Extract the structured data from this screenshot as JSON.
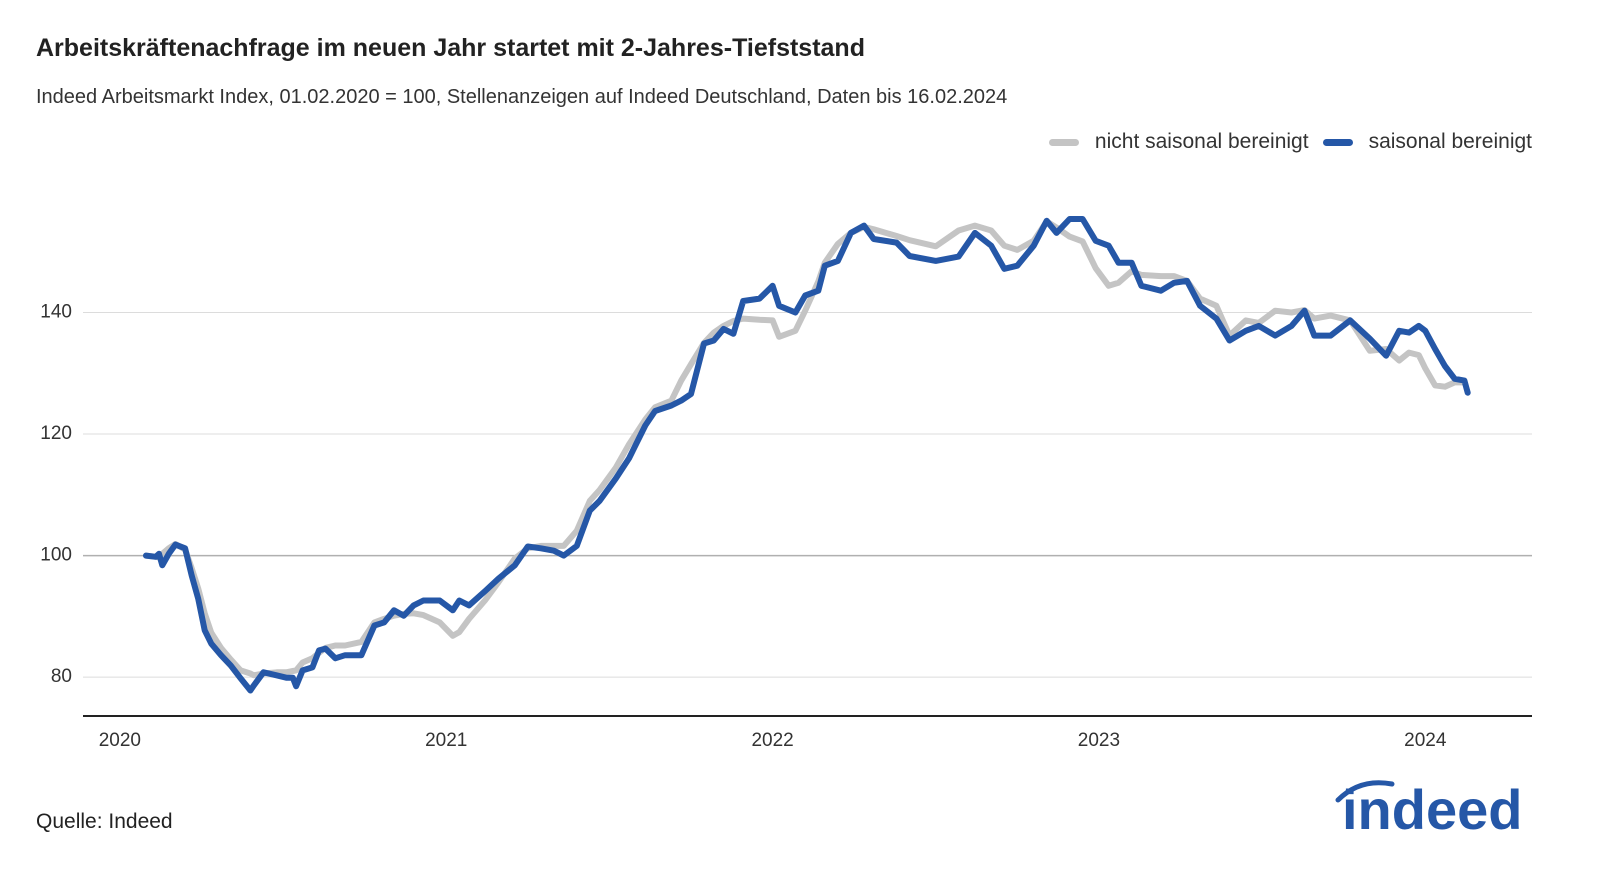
{
  "chart_data": {
    "type": "line",
    "title": "Arbeitskräftenachfrage im neuen Jahr startet mit 2-Jahres-Tiefststand",
    "subtitle": "Indeed Arbeitsmarkt Index, 01.02.2020 = 100, Stellenanzeigen auf Indeed Deutschland, Daten bis 16.02.2024",
    "source": "Quelle: Indeed",
    "x": [
      2020.08,
      2020.11,
      2020.12,
      2020.13,
      2020.15,
      2020.17,
      2020.2,
      2020.22,
      2020.24,
      2020.26,
      2020.28,
      2020.31,
      2020.34,
      2020.37,
      2020.4,
      2020.41,
      2020.44,
      2020.48,
      2020.51,
      2020.53,
      2020.54,
      2020.56,
      2020.59,
      2020.61,
      2020.63,
      2020.66,
      2020.69,
      2020.74,
      2020.78,
      2020.81,
      2020.84,
      2020.87,
      2020.9,
      2020.93,
      2020.98,
      2021.02,
      2021.04,
      2021.07,
      2021.12,
      2021.16,
      2021.21,
      2021.25,
      2021.29,
      2021.33,
      2021.36,
      2021.4,
      2021.44,
      2021.47,
      2021.52,
      2021.56,
      2021.61,
      2021.64,
      2021.69,
      2021.72,
      2021.75,
      2021.79,
      2021.82,
      2021.85,
      2021.88,
      2021.91,
      2021.96,
      2022,
      2022.02,
      2022.07,
      2022.1,
      2022.14,
      2022.16,
      2022.2,
      2022.24,
      2022.28,
      2022.31,
      2022.38,
      2022.42,
      2022.5,
      2022.57,
      2022.62,
      2022.67,
      2022.71,
      2022.75,
      2022.8,
      2022.84,
      2022.87,
      2022.91,
      2022.95,
      2022.99,
      2023.03,
      2023.06,
      2023.1,
      2023.13,
      2023.19,
      2023.23,
      2023.27,
      2023.31,
      2023.36,
      2023.4,
      2023.45,
      2023.49,
      2023.54,
      2023.59,
      2023.63,
      2023.66,
      2023.71,
      2023.77,
      2023.83,
      2023.88,
      2023.92,
      2023.95,
      2023.98,
      2024,
      2024.03,
      2024.06,
      2024.09,
      2024.12,
      2024.13
    ],
    "series": [
      {
        "name": "nicht saisonal bereinigt",
        "color": "#c4c4c4",
        "values": [
          100,
          99.8,
          99.7,
          100.3,
          101.2,
          101.9,
          101,
          97.9,
          94.6,
          90.5,
          87.3,
          84.8,
          82.9,
          81.1,
          80.6,
          80.3,
          80.6,
          80.8,
          80.8,
          81,
          81.1,
          82.4,
          83.1,
          84,
          84.8,
          85.2,
          85.2,
          85.8,
          89,
          89.6,
          90.1,
          90.4,
          90.5,
          90.2,
          89,
          86.8,
          87.4,
          89.6,
          92.7,
          95.6,
          99.5,
          101.2,
          101.6,
          101.6,
          101.6,
          104.1,
          109,
          110.8,
          114.5,
          118.3,
          122.4,
          124.4,
          125.5,
          128.8,
          131.5,
          135,
          136.7,
          137.8,
          138.6,
          139,
          138.8,
          138.7,
          136,
          137,
          140.3,
          145.1,
          148.2,
          151.3,
          153.1,
          154.1,
          153.7,
          152.6,
          151.9,
          150.9,
          153.5,
          154.3,
          153.5,
          151,
          150.3,
          151.8,
          155,
          154,
          152.5,
          151.7,
          147.3,
          144.4,
          144.9,
          146.8,
          146.2,
          146,
          146,
          145.2,
          142.3,
          141.1,
          136.2,
          138.7,
          138.3,
          140.3,
          140,
          140.4,
          139,
          139.5,
          138.7,
          133.7,
          134,
          132.1,
          133.4,
          133,
          130.8,
          128,
          127.8,
          128.5,
          128.5,
          null
        ]
      },
      {
        "name": "saisonal bereinigt",
        "color": "#2557a7",
        "values": [
          100,
          99.8,
          100.3,
          98.4,
          100.3,
          101.8,
          101.2,
          96.7,
          92.9,
          87.7,
          85.5,
          83.6,
          81.9,
          79.8,
          77.8,
          78.6,
          80.8,
          80.3,
          79.9,
          79.9,
          78.5,
          81.1,
          81.6,
          84.4,
          84.7,
          83.1,
          83.6,
          83.6,
          88.5,
          89,
          91,
          90.1,
          91.8,
          92.6,
          92.6,
          91,
          92.6,
          91.8,
          94.2,
          96.2,
          98.4,
          101.5,
          101.2,
          100.8,
          100,
          101.6,
          107.4,
          109,
          112.7,
          116,
          121.4,
          123.8,
          124.7,
          125.5,
          126.6,
          134.9,
          135.4,
          137.3,
          136.5,
          141.9,
          142.3,
          144.4,
          141.1,
          140,
          142.8,
          143.6,
          147.7,
          148.5,
          153.1,
          154.3,
          152.1,
          151.5,
          149.3,
          148.5,
          149.2,
          153.1,
          151,
          147.2,
          147.7,
          151,
          155.1,
          153.1,
          155.4,
          155.4,
          151.8,
          151,
          148.2,
          148.2,
          144.4,
          143.6,
          144.9,
          145.2,
          141.1,
          139,
          135.4,
          137,
          137.8,
          136.2,
          137.8,
          140.3,
          136.2,
          136.2,
          138.7,
          135.7,
          132.9,
          137,
          136.7,
          137.8,
          137,
          134,
          131.2,
          129.1,
          128.8,
          126.8
        ]
      }
    ],
    "xlim": [
      2019.887,
      2024.327
    ],
    "xticks": [
      2020,
      2021,
      2022,
      2023,
      2024
    ],
    "ylim": [
      73.6,
      160
    ],
    "yticks": [
      80,
      100,
      120,
      140
    ],
    "baseline": 100,
    "grid": true,
    "legend": "top-right"
  },
  "logo": "indeed"
}
